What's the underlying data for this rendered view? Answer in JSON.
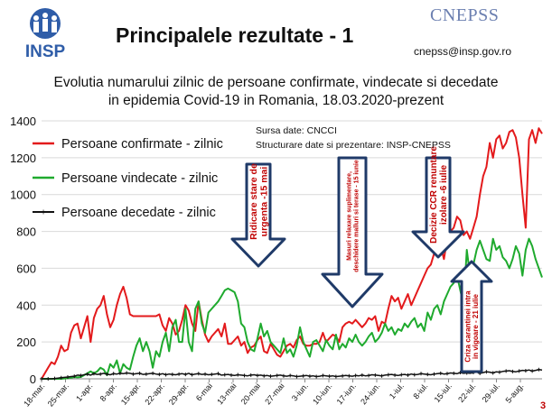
{
  "header": {
    "logo_text": "INSP",
    "title": "Principalele rezultate - 1",
    "brand": "CNEPSS",
    "email": "cnepss@insp.gov.ro"
  },
  "page_number": "3",
  "chart_data": {
    "type": "line",
    "title_line1": "Evolutia numarului zilnic de persoane confirmate, vindecate si decedate",
    "title_line2": "in epidemia Covid-19 in Romania, 18.03.2020-prezent",
    "ylim": [
      0,
      1400
    ],
    "yticks": [
      "0",
      "200",
      "400",
      "600",
      "800",
      "1000",
      "1200",
      "1400"
    ],
    "xticks": [
      "18-mar.",
      "25-mar.",
      "1-apr.",
      "8-apr.",
      "15-apr.",
      "22-apr.",
      "29-apr.",
      "6-mai",
      "13-mai",
      "20-mai",
      "27-mai",
      "3-iun.",
      "10-iun.",
      "17-iun.",
      "24-iun.",
      "1-iul.",
      "8-iul.",
      "15-iul.",
      "22-iul.",
      "29-iul.",
      "5-aug."
    ],
    "grid": true,
    "legend_position": "top-left",
    "source_lines": [
      "Sursa date: CNCCI",
      "Structurare date si prezentare: INSP-CNEPSS"
    ],
    "series": [
      {
        "name": "Persoane confirmate - zilnic",
        "color": "#e31a1c",
        "values": [
          0,
          30,
          60,
          90,
          80,
          120,
          180,
          150,
          160,
          250,
          290,
          300,
          220,
          280,
          340,
          200,
          330,
          380,
          400,
          450,
          350,
          280,
          320,
          400,
          460,
          500,
          440,
          350,
          340,
          340,
          340,
          340,
          340,
          340,
          340,
          340,
          350,
          290,
          260,
          330,
          300,
          240,
          260,
          320,
          400,
          370,
          300,
          260,
          420,
          320,
          240,
          200,
          230,
          250,
          270,
          230,
          300,
          190,
          190,
          210,
          230,
          180,
          200,
          140,
          170,
          180,
          210,
          230,
          150,
          140,
          190,
          160,
          130,
          120,
          150,
          180,
          190,
          170,
          210,
          230,
          190,
          180,
          180,
          190,
          190,
          200,
          250,
          200,
          220,
          240,
          230,
          200,
          280,
          300,
          310,
          300,
          320,
          300,
          280,
          300,
          330,
          320,
          340,
          260,
          310,
          300,
          380,
          450,
          420,
          440,
          380,
          420,
          460,
          400,
          440,
          480,
          520,
          560,
          600,
          620,
          680,
          700,
          720,
          650,
          760,
          800,
          820,
          880,
          860,
          780,
          800,
          760,
          820,
          880,
          1000,
          1100,
          1150,
          1280,
          1200,
          1300,
          1320,
          1250,
          1280,
          1340,
          1350,
          1310,
          1200,
          1000,
          820,
          1300,
          1350,
          1280,
          1360,
          1330
        ]
      },
      {
        "name": "Persoane vindecate - zilnic",
        "color": "#1faa2e",
        "values": [
          0,
          0,
          0,
          0,
          0,
          0,
          0,
          2,
          4,
          6,
          10,
          8,
          10,
          20,
          30,
          40,
          30,
          40,
          60,
          50,
          20,
          80,
          60,
          100,
          30,
          80,
          60,
          50,
          120,
          180,
          220,
          150,
          200,
          150,
          60,
          150,
          120,
          200,
          250,
          150,
          280,
          320,
          200,
          200,
          380,
          200,
          150,
          380,
          420,
          300,
          250,
          360,
          380,
          400,
          420,
          450,
          480,
          490,
          480,
          470,
          420,
          300,
          280,
          200,
          160,
          150,
          220,
          300,
          230,
          260,
          200,
          180,
          160,
          140,
          220,
          140,
          160,
          120,
          180,
          280,
          200,
          160,
          120,
          200,
          210,
          180,
          150,
          210,
          180,
          160,
          240,
          160,
          190,
          170,
          220,
          200,
          240,
          200,
          180,
          200,
          230,
          250,
          200,
          220,
          250,
          300,
          260,
          280,
          240,
          270,
          260,
          300,
          280,
          310,
          330,
          280,
          300,
          260,
          360,
          320,
          380,
          400,
          350,
          420,
          460,
          500,
          520,
          560,
          480,
          400,
          700,
          560,
          620,
          700,
          750,
          700,
          650,
          640,
          760,
          700,
          720,
          660,
          640,
          600,
          650,
          720,
          680,
          560,
          700,
          760,
          720,
          650,
          600,
          550
        ]
      },
      {
        "name": "Persoane decedate - zilnic",
        "color": "#111111",
        "values": [
          0,
          0,
          0,
          0,
          2,
          4,
          6,
          8,
          10,
          12,
          14,
          20,
          18,
          22,
          25,
          20,
          28,
          24,
          26,
          30,
          25,
          22,
          28,
          26,
          30,
          28,
          32,
          30,
          26,
          28,
          30,
          24,
          26,
          28,
          30,
          26,
          24,
          28,
          22,
          26,
          24,
          22,
          26,
          28,
          24,
          30,
          22,
          26,
          28,
          24,
          26,
          22,
          24,
          26,
          28,
          20,
          22,
          24,
          20,
          18,
          22,
          20,
          18,
          16,
          20,
          22,
          18,
          20,
          16,
          18,
          14,
          16,
          18,
          20,
          16,
          14,
          18,
          16,
          12,
          14,
          16,
          18,
          14,
          16,
          12,
          14,
          18,
          16,
          14,
          16,
          12,
          14,
          16,
          18,
          16,
          14,
          18,
          16,
          20,
          16,
          18,
          22,
          20,
          18,
          16,
          20,
          22,
          24,
          20,
          18,
          22,
          24,
          20,
          26,
          22,
          24,
          28,
          26,
          24,
          22,
          26,
          28,
          30,
          26,
          28,
          32,
          30,
          28,
          34,
          30,
          32,
          30,
          34,
          36,
          30,
          34,
          38,
          36,
          32,
          38,
          36,
          40,
          42,
          44,
          40,
          38,
          42,
          46,
          44,
          48,
          42,
          46,
          50,
          48
        ]
      }
    ],
    "annotations": [
      {
        "text": "Ridicare stare de urgenta -15 mai",
        "color": "#c00000"
      },
      {
        "text": "Masuri relaxare suplimentare, deschidere malluri si terase - 15 iunie",
        "color": "#c00000"
      },
      {
        "text": "Decizie CCR renuntare izolare -6 iulie",
        "color": "#c00000"
      },
      {
        "text": "Criza carantinei intra in vigoare - 21 iulie",
        "color": "#c00000"
      }
    ]
  }
}
